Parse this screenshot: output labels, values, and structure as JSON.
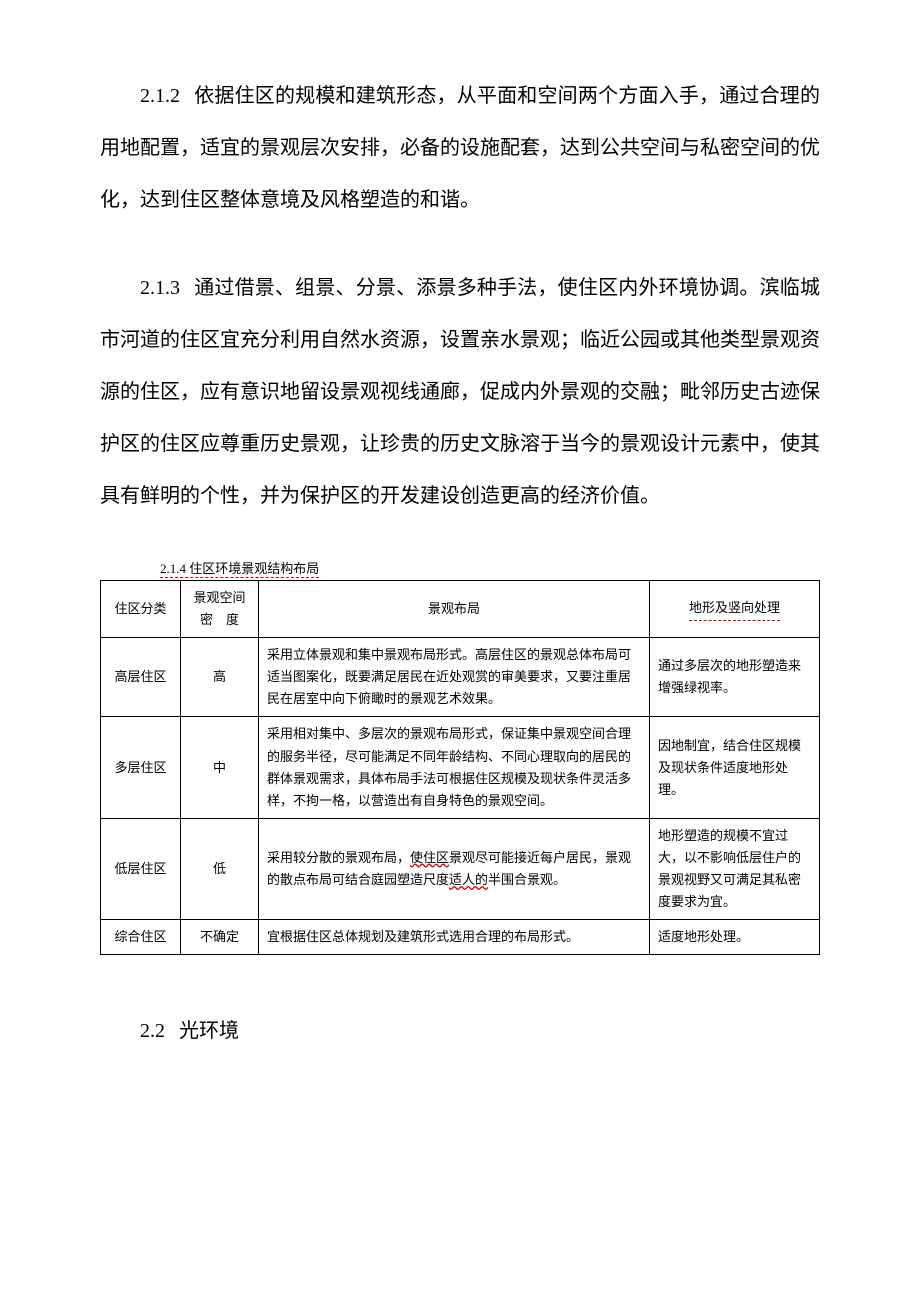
{
  "paragraphs": {
    "p1": {
      "num": "2.1.2",
      "text": "依据住区的规模和建筑形态，从平面和空间两个方面入手，通过合理的用地配置，适宜的景观层次安排，必备的设施配套，达到公共空间与私密空间的优化，达到住区整体意境及风格塑造的和谐。"
    },
    "p2": {
      "num": "2.1.3",
      "text": "通过借景、组景、分景、添景多种手法，使住区内外环境协调。滨临城市河道的住区宜充分利用自然水资源，设置亲水景观；临近公园或其他类型景观资源的住区，应有意识地留设景观视线通廊，促成内外景观的交融；毗邻历史古迹保护区的住区应尊重历史景观，让珍贵的历史文脉溶于当今的景观设计元素中，使其具有鲜明的个性，并为保护区的开发建设创造更高的经济价值。"
    }
  },
  "table": {
    "title": "2.1.4 住区环境景观结构布局",
    "headers": {
      "h1": "住区分类",
      "h2_line1": "景观空间",
      "h2_line2": "密",
      "h2_line3": "度",
      "h3": "景观布局",
      "h4": "地形及竖向处理"
    },
    "rows": [
      {
        "c1": "高层住区",
        "c2": "高",
        "c3": "采用立体景观和集中景观布局形式。高层住区的景观总体布局可适当图案化，既要满足居民在近处观赏的审美要求，又要注重居民在居室中向下俯瞰时的景观艺术效果。",
        "c4": "通过多层次的地形塑造来增强绿视率。"
      },
      {
        "c1": "多层住区",
        "c2": "中",
        "c3": "采用相对集中、多层次的景观布局形式，保证集中景观空间合理的服务半径，尽可能满足不同年龄结构、不同心理取向的居民的群体景观需求，具体布局手法可根据住区规模及现状条件灵活多样，不拘一格，以营造出有自身特色的景观空间。",
        "c4": "因地制宜，结合住区规模及现状条件适度地形处理。"
      },
      {
        "c1": "低层住区",
        "c2": "低",
        "c3_prefix": "采用较分散的景观布局，",
        "c3_wavy": "使住区",
        "c3_mid": "景观尽可能接近每户居民，景观的散点布局可结合庭园塑造尺度",
        "c3_wavy2": "适人的",
        "c3_suffix": "半围合景观。",
        "c4": "地形塑造的规模不宜过大，以不影响低层住户的景观视野又可满足其私密度要求为宜。"
      },
      {
        "c1": "综合住区",
        "c2": "不确定",
        "c3": "宜根据住区总体规划及建筑形式选用合理的布局形式。",
        "c4": "适度地形处理。"
      }
    ]
  },
  "section2": {
    "num": "2.2",
    "title": "光环境"
  },
  "colors": {
    "text": "#000000",
    "background": "#ffffff",
    "underline_red": "#cc0000",
    "border": "#000000"
  },
  "typography": {
    "body_fontsize": 20,
    "table_fontsize": 13,
    "line_height": 2.6,
    "font_family": "SimSun"
  }
}
